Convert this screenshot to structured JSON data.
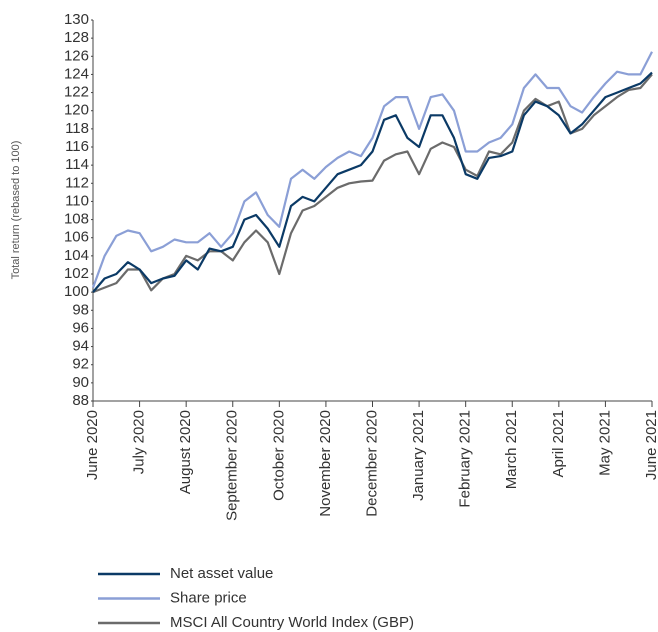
{
  "chart_data": {
    "type": "line",
    "y_label": "Total return (rebased to 100)",
    "categories": [
      "June 2020",
      null,
      null,
      null,
      "July 2020",
      null,
      null,
      null,
      "August 2020",
      null,
      null,
      null,
      "September 2020",
      null,
      null,
      null,
      "October 2020",
      null,
      null,
      null,
      "November 2020",
      null,
      null,
      null,
      "December 2020",
      null,
      null,
      null,
      "January 2021",
      null,
      null,
      null,
      "February 2021",
      null,
      null,
      null,
      "March 2021",
      null,
      null,
      null,
      "April 2021",
      null,
      null,
      null,
      "May 2021",
      null,
      null,
      null,
      "June 2021"
    ],
    "series": [
      {
        "name": "Net asset value",
        "color": "#0b3a66",
        "values": [
          100,
          101.5,
          102,
          103.3,
          102.5,
          101,
          101.5,
          101.8,
          103.5,
          102.5,
          104.8,
          104.5,
          105,
          108,
          108.5,
          107,
          105,
          109.5,
          110.5,
          110,
          111.5,
          113,
          113.5,
          114,
          115.5,
          119,
          119.5,
          117,
          116,
          119.5,
          119.5,
          117,
          113,
          112.5,
          114.8,
          115,
          115.5,
          119.5,
          121,
          120.5,
          119.5,
          117.5,
          118.5,
          120,
          121.5,
          122,
          122.5,
          123,
          124.2
        ]
      },
      {
        "name": "Share price",
        "color": "#8b9fd6",
        "values": [
          100.5,
          104,
          106.2,
          106.8,
          106.5,
          104.5,
          105,
          105.8,
          105.5,
          105.5,
          106.5,
          105,
          106.5,
          110,
          111,
          108.5,
          107.2,
          112.5,
          113.5,
          112.5,
          113.8,
          114.8,
          115.5,
          115,
          117,
          120.5,
          121.5,
          121.5,
          118,
          121.5,
          121.8,
          120,
          115.5,
          115.5,
          116.5,
          117,
          118.5,
          122.5,
          124,
          122.5,
          122.5,
          120.5,
          119.8,
          121.5,
          123,
          124.3,
          124,
          124,
          126.5
        ]
      },
      {
        "name": "MSCI All Country World Index (GBP)",
        "color": "#6b6b6b",
        "values": [
          100,
          100.5,
          101,
          102.5,
          102.5,
          100.2,
          101.5,
          102,
          104,
          103.5,
          104.5,
          104.5,
          103.5,
          105.5,
          106.8,
          105.5,
          102,
          106.5,
          109,
          109.5,
          110.5,
          111.5,
          112,
          112.2,
          112.3,
          114.5,
          115.2,
          115.5,
          113,
          115.8,
          116.5,
          116,
          113.5,
          112.8,
          115.5,
          115.2,
          116.5,
          120,
          121.3,
          120.5,
          121,
          117.5,
          118,
          119.5,
          120.5,
          121.5,
          122.3,
          122.5,
          124
        ]
      }
    ],
    "ylim": [
      88,
      130
    ],
    "yticks": [
      88,
      90,
      92,
      94,
      96,
      98,
      100,
      102,
      104,
      106,
      108,
      110,
      112,
      114,
      116,
      118,
      120,
      122,
      124,
      126,
      128,
      130
    ],
    "grid": false,
    "legend": "bottom-left"
  }
}
